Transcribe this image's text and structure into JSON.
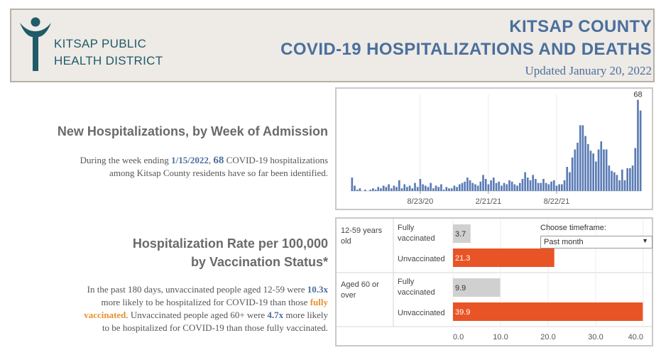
{
  "header": {
    "org_line1": "KITSAP PUBLIC",
    "org_line2": "HEALTH DISTRICT",
    "title_line1": "KITSAP COUNTY",
    "title_line2": "COVID-19 HOSPITALIZATIONS AND DEATHS",
    "updated": "Updated January 20, 2022"
  },
  "new_hosp": {
    "heading": "New Hospitalizations, by Week of Admission",
    "text_pre": "During the week ending ",
    "date": "1/15/2022",
    "comma": ", ",
    "count": "68",
    "text_post1": " COVID-19 hospitalizations",
    "text_post2": "among Kitsap County residents have so far been identified."
  },
  "rate": {
    "heading1": "Hospitalization Rate per 100,000",
    "heading2": "by Vaccination Status*",
    "t1": "In the past 180 days, unvaccinated people aged 12-59 were ",
    "v1": "10.3x",
    "t2": "more likely to be hospitalized for COVID-19 than those ",
    "fv1": "fully",
    "fv2": "vaccinated",
    "t3": ". Unvaccinated people aged 60+ were ",
    "v2": "4.7x",
    "t4": " more likely",
    "t5": "to be hospitalized for COVID-19 than those fully vaccinated."
  },
  "timeframe": {
    "label": "Choose timeframe:",
    "selected": "Past month"
  },
  "colors": {
    "bar_blue": "#5a7bb5",
    "unvax_orange": "#e85425",
    "vax_gray": "#d0d0d0",
    "title_blue": "#4a6f9c",
    "highlight_orange": "#e8902e"
  },
  "chart_data": [
    {
      "type": "bar",
      "title": "",
      "xlabel": "",
      "ylabel": "",
      "x_tick_labels": [
        "8/23/20",
        "2/21/21",
        "8/22/21"
      ],
      "annotation": "68",
      "values": [
        10,
        4,
        1,
        2,
        0,
        1,
        0,
        1,
        2,
        1,
        3,
        2,
        4,
        3,
        5,
        2,
        4,
        3,
        8,
        2,
        5,
        3,
        4,
        2,
        6,
        3,
        9,
        5,
        4,
        3,
        6,
        2,
        4,
        3,
        5,
        1,
        3,
        2,
        2,
        4,
        3,
        5,
        6,
        7,
        10,
        8,
        6,
        5,
        4,
        7,
        12,
        9,
        5,
        8,
        10,
        6,
        7,
        4,
        6,
        5,
        8,
        7,
        5,
        4,
        6,
        9,
        14,
        10,
        8,
        12,
        9,
        6,
        6,
        9,
        6,
        5,
        7,
        8,
        4,
        5,
        5,
        8,
        18,
        14,
        25,
        31,
        36,
        49,
        49,
        41,
        35,
        30,
        28,
        22,
        31,
        37,
        31,
        31,
        19,
        15,
        14,
        12,
        8,
        16,
        8,
        17,
        17,
        19,
        32,
        68,
        60
      ],
      "ylim": [
        0,
        72
      ]
    },
    {
      "type": "bar",
      "orientation": "horizontal",
      "groups": [
        {
          "label": "12-59 years old",
          "rows": [
            {
              "name": "Fully vaccinated",
              "value": 3.7
            },
            {
              "name": "Unvaccinated",
              "value": 21.3
            }
          ]
        },
        {
          "label": "Aged 60 or over",
          "rows": [
            {
              "name": "Fully vaccinated",
              "value": 9.9
            },
            {
              "name": "Unvaccinated",
              "value": 39.9
            }
          ]
        }
      ],
      "x_ticks": [
        "0.0",
        "10.0",
        "20.0",
        "30.0",
        "40.0"
      ],
      "xlim": [
        0,
        40
      ]
    }
  ]
}
